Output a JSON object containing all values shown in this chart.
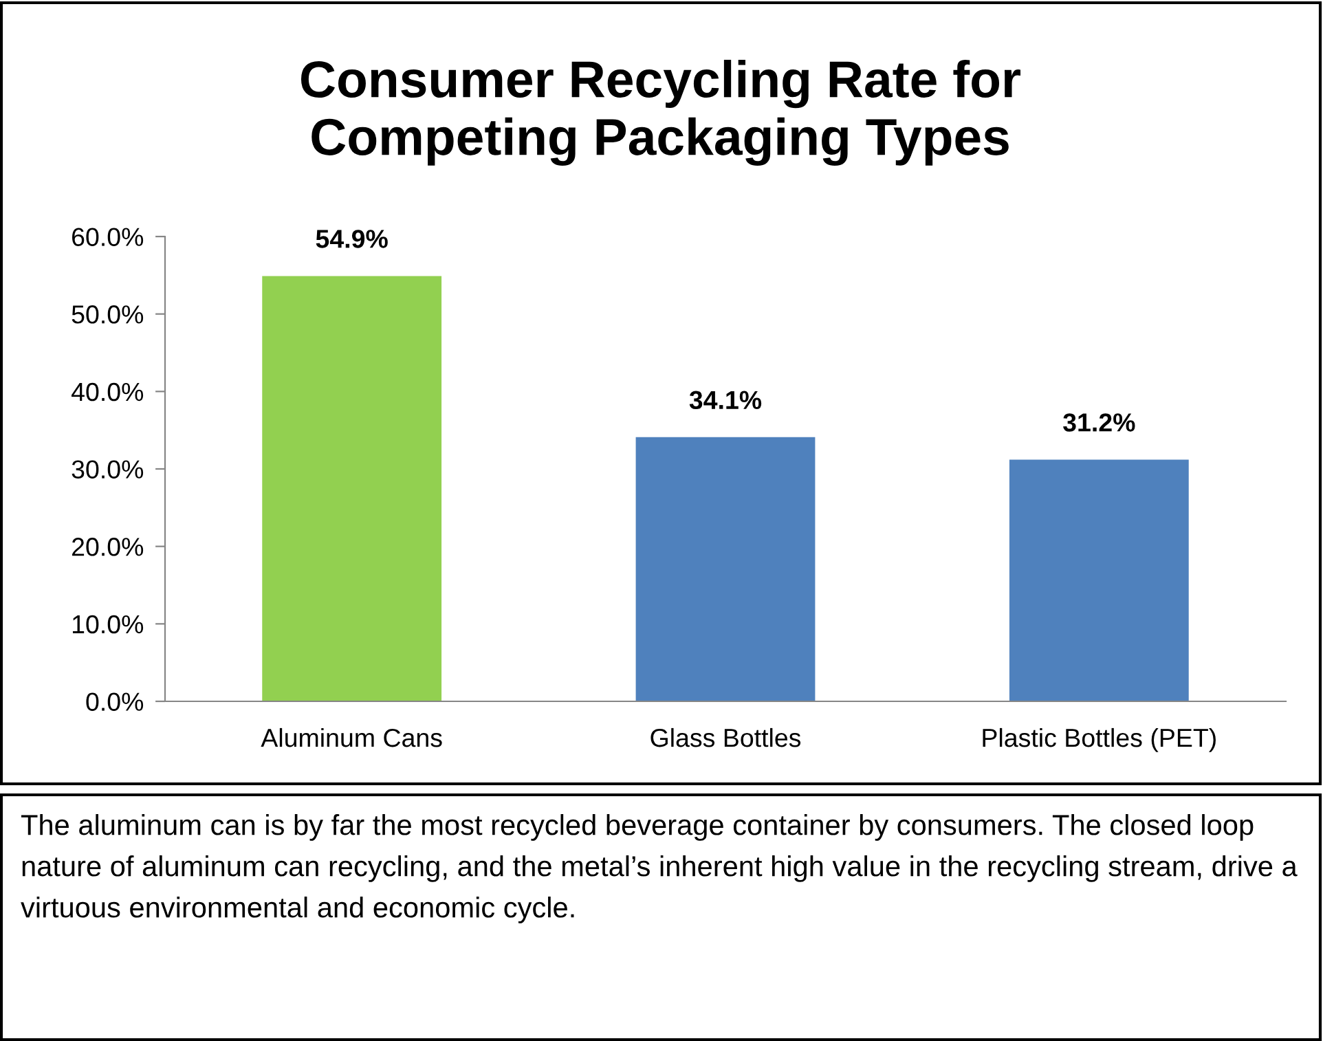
{
  "chart_data": {
    "type": "bar",
    "title": "Consumer Recycling Rate for\nCompeting Packaging Types",
    "categories": [
      "Aluminum Cans",
      "Glass Bottles",
      "Plastic Bottles (PET)"
    ],
    "values": [
      54.9,
      34.1,
      31.2
    ],
    "colors": [
      "#92d050",
      "#4f81bd",
      "#4f81bd"
    ],
    "value_labels": [
      "54.9%",
      "34.1%",
      "31.2%"
    ],
    "ylim": [
      0,
      60
    ],
    "yticks": [
      {
        "value": 0,
        "label": "0.0%"
      },
      {
        "value": 10,
        "label": "10.0%"
      },
      {
        "value": 20,
        "label": "20.0%"
      },
      {
        "value": 30,
        "label": "30.0%"
      },
      {
        "value": 40,
        "label": "40.0%"
      },
      {
        "value": 50,
        "label": "50.0%"
      },
      {
        "value": 60,
        "label": "60.0%"
      }
    ],
    "grid": false,
    "legend": false,
    "annotations": [
      "The aluminum can is by far the most recycled beverage container by consumers. The closed loop nature of aluminum can recycling, and the metal’s inherent high value in the recycling stream, drive a virtuous environmental and economic cycle."
    ]
  }
}
